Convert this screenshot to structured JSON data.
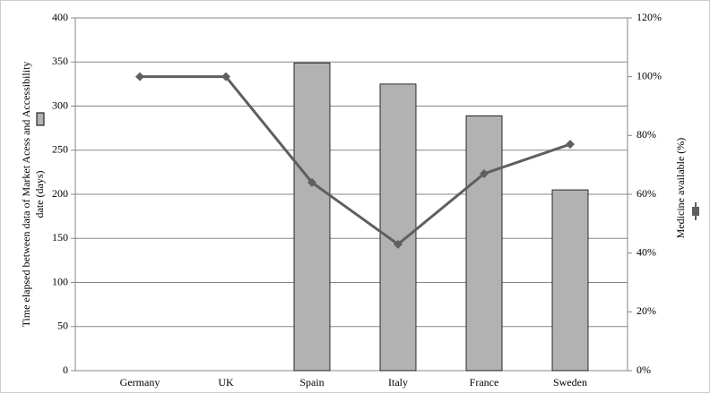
{
  "chart_data": {
    "type": "bar-line",
    "categories": [
      "Germany",
      "UK",
      "Spain",
      "Italy",
      "France",
      "Sweden"
    ],
    "series": [
      {
        "type": "bar",
        "color": "#b2b2b2",
        "values": [
          null,
          null,
          349,
          325,
          289,
          205
        ]
      },
      {
        "type": "line",
        "axis": "y2",
        "color": "#5f5f5f",
        "values": [
          100,
          100,
          64,
          43,
          67,
          77
        ]
      }
    ],
    "y_label": [
      "Time elapsed between data of Market Acess and Accessibility",
      "date (days)"
    ],
    "y2_label": "Medicine available (%)",
    "ylim": [
      0,
      400
    ],
    "yticks": [
      0,
      50,
      100,
      150,
      200,
      250,
      300,
      350,
      400
    ],
    "y2lim": [
      0,
      120
    ],
    "y2ticks": [
      {
        "value": 0,
        "label": "0%"
      },
      {
        "value": 20,
        "label": "20%"
      },
      {
        "value": 40,
        "label": "40%"
      },
      {
        "value": 60,
        "label": "60%"
      },
      {
        "value": 80,
        "label": "80%"
      },
      {
        "value": 100,
        "label": "100%"
      },
      {
        "value": 120,
        "label": "120%"
      }
    ],
    "grid": true
  }
}
